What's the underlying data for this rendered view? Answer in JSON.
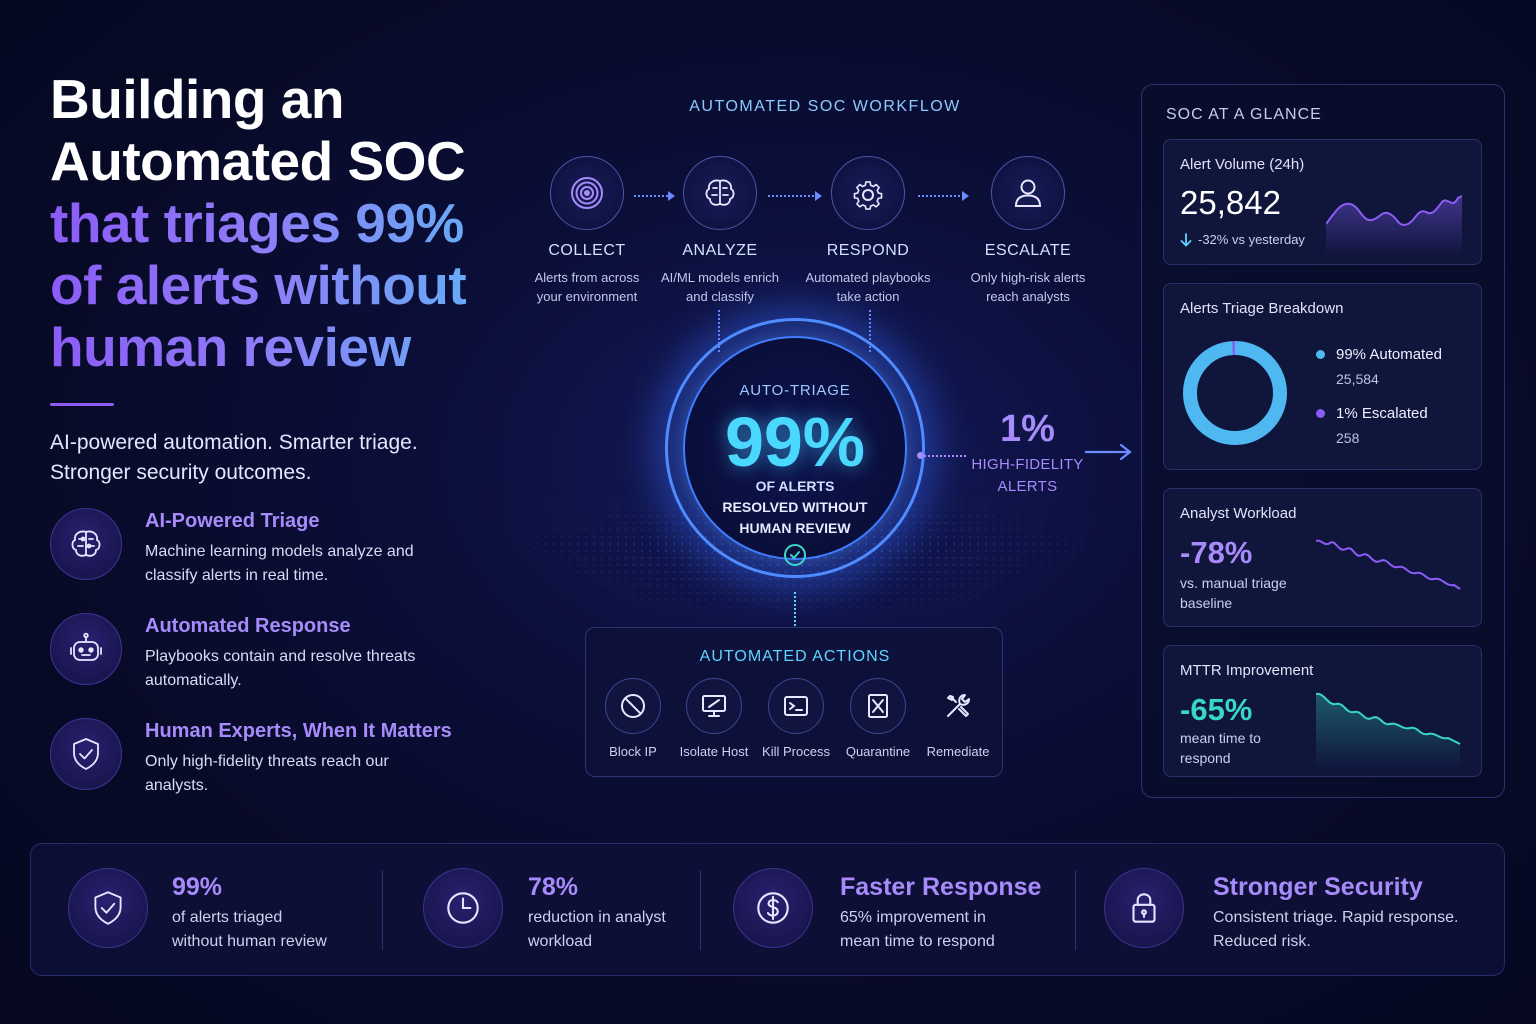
{
  "hero": {
    "title_line1": "Building an",
    "title_line2": "Automated SOC",
    "title_line3": "that triages 99%",
    "title_line4": "of alerts without",
    "title_line5": "human review",
    "subtitle_line1": "AI-powered automation. Smarter triage.",
    "subtitle_line2": "Stronger security outcomes.",
    "features": [
      {
        "icon": "brain-icon",
        "title": "AI-Powered Triage",
        "desc": "Machine learning models analyze and classify alerts in real time."
      },
      {
        "icon": "robot-icon",
        "title": "Automated Response",
        "desc": "Playbooks contain and resolve threats automatically."
      },
      {
        "icon": "shield-check-icon",
        "title": "Human Experts, When It Matters",
        "desc": "Only high-fidelity threats reach our analysts."
      }
    ]
  },
  "workflow": {
    "title": "AUTOMATED SOC WORKFLOW",
    "steps": [
      {
        "icon": "fingerprint-icon",
        "label": "COLLECT",
        "desc_line1": "Alerts from across",
        "desc_line2": "your environment"
      },
      {
        "icon": "brain-icon",
        "label": "ANALYZE",
        "desc_line1": "AI/ML models enrich",
        "desc_line2": "and classify"
      },
      {
        "icon": "gear-icon",
        "label": "RESPOND",
        "desc_line1": "Automated playbooks",
        "desc_line2": "take action"
      },
      {
        "icon": "user-icon",
        "label": "ESCALATE",
        "desc_line1": "Only high-risk alerts",
        "desc_line2": "reach analysts"
      }
    ]
  },
  "auto_triage": {
    "label": "AUTO-TRIAGE",
    "value": "99%",
    "desc_line1": "OF ALERTS",
    "desc_line2": "RESOLVED WITHOUT",
    "desc_line3": "HUMAN REVIEW"
  },
  "high_fidelity": {
    "value": "1%",
    "label_line1": "HIGH-FIDELITY",
    "label_line2": "ALERTS"
  },
  "actions": {
    "title": "AUTOMATED ACTIONS",
    "items": [
      {
        "icon": "block-icon",
        "label": "Block IP"
      },
      {
        "icon": "monitor-icon",
        "label": "Isolate Host"
      },
      {
        "icon": "terminal-icon",
        "label": "Kill Process"
      },
      {
        "icon": "quarantine-icon",
        "label": "Quarantine"
      },
      {
        "icon": "tools-icon",
        "label": "Remediate"
      }
    ]
  },
  "glance": {
    "title": "SOC AT A GLANCE",
    "alert_volume": {
      "title": "Alert Volume (24h)",
      "value": "25,842",
      "change": "-32% vs yesterday"
    },
    "breakdown": {
      "title": "Alerts Triage Breakdown",
      "automated_label": "99% Automated",
      "automated_count": "25,584",
      "automated_fraction": 0.99,
      "escalated_label": "1% Escalated",
      "escalated_count": "258"
    },
    "workload": {
      "title": "Analyst Workload",
      "value": "-78%",
      "desc_line1": "vs. manual triage",
      "desc_line2": "baseline"
    },
    "mttr": {
      "title": "MTTR Improvement",
      "value": "-65%",
      "desc_line1": "mean time to",
      "desc_line2": "respond"
    }
  },
  "stats": [
    {
      "icon": "shield-check-icon",
      "heading": "99%",
      "desc_line1": "of alerts triaged",
      "desc_line2": "without human review"
    },
    {
      "icon": "clock-icon",
      "heading": "78%",
      "desc_line1": "reduction in analyst",
      "desc_line2": "workload"
    },
    {
      "icon": "dollar-icon",
      "heading": "Faster Response",
      "desc_line1": "65% improvement in",
      "desc_line2": "mean time to respond"
    },
    {
      "icon": "lock-icon",
      "heading": "Stronger Security",
      "desc_line1": "Consistent triage. Rapid response.",
      "desc_line2": "Reduced risk."
    }
  ],
  "colors": {
    "accent_purple": "#a78bfa",
    "accent_cyan": "#4ad8ff",
    "teal": "#38d6c9",
    "background": "#070a26"
  }
}
